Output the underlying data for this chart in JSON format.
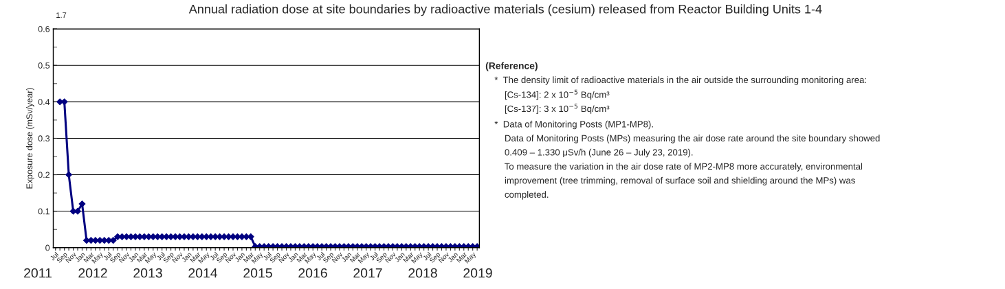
{
  "chart_data": {
    "type": "line",
    "title": "Annual radiation dose at site boundaries by radioactive materials (cesium) released from Reactor Building Units 1-4",
    "ylabel": "Exposure dose (mSv/year)",
    "categories": [
      "Jul",
      null,
      "Sep",
      null,
      "Nov",
      null,
      "Jan",
      null,
      "Mar",
      null,
      "May",
      null,
      "Jul",
      null,
      "Sep",
      null,
      "Nov",
      null,
      "Jan",
      null,
      "Mar",
      null,
      "May",
      null,
      "Jul",
      null,
      "Sep",
      null,
      "Nov",
      null,
      "Jan",
      null,
      "Mar",
      null,
      "May",
      null,
      "Jul",
      null,
      "Sep",
      null,
      "Nov",
      null,
      "Jan",
      null,
      "Mar",
      null,
      "May",
      null,
      "Jul",
      null,
      "Sep",
      null,
      "Nov",
      null,
      "Jan",
      null,
      "Mar",
      null,
      "May",
      null,
      "Jul",
      null,
      "Sep",
      null,
      "Nov",
      null,
      "Jan",
      null,
      "Mar",
      null,
      "May",
      null,
      "Jul",
      null,
      "Sep",
      null,
      "Nov",
      null,
      "Jan",
      null,
      "Mar",
      null,
      "May",
      null,
      "Jul",
      null,
      "Sep",
      null,
      "Nov",
      null,
      "Jan",
      null,
      "Mar",
      null,
      "May",
      null
    ],
    "series": [
      {
        "color": "#000080",
        "values": [
          null,
          0.4,
          0.4,
          0.2,
          0.1,
          0.1,
          0.12,
          0.02,
          0.02,
          0.02,
          0.02,
          0.02,
          0.02,
          0.02,
          0.03,
          0.03,
          0.03,
          0.03,
          0.03,
          0.03,
          0.03,
          0.03,
          0.03,
          0.03,
          0.03,
          0.03,
          0.03,
          0.03,
          0.03,
          0.03,
          0.03,
          0.03,
          0.03,
          0.03,
          0.03,
          0.03,
          0.03,
          0.03,
          0.03,
          0.03,
          0.03,
          0.03,
          0.03,
          0.03,
          0.03,
          0.003,
          0.003,
          0.003,
          0.003,
          0.003,
          0.003,
          0.003,
          0.003,
          0.003,
          0.003,
          0.003,
          0.003,
          0.003,
          0.003,
          0.003,
          0.003,
          0.003,
          0.003,
          0.003,
          0.003,
          0.003,
          0.003,
          0.003,
          0.003,
          0.003,
          0.003,
          0.003,
          0.003,
          0.003,
          0.003,
          0.003,
          0.003,
          0.003,
          0.003,
          0.003,
          0.003,
          0.003,
          0.003,
          0.003,
          0.003,
          0.003,
          0.003,
          0.003,
          0.003,
          0.003,
          0.003,
          0.003,
          0.003,
          0.003,
          0.003,
          0.003
        ]
      }
    ],
    "ylim": [
      0,
      0.6
    ],
    "yticks": [
      0,
      0.1,
      0.2,
      0.3,
      0.4,
      0.5,
      0.6
    ],
    "grid": "y",
    "marker": "diamond",
    "line_style": "solid",
    "legend": false,
    "annotations": [
      "1.7",
      "2011",
      "2012",
      "2013",
      "2014",
      "2015",
      "2016",
      "2017",
      "2018",
      "2019",
      "(Reference)",
      "*  The density limit of radioactive materials in the air outside the surrounding monitoring area:",
      "    [Cs-134]: 2 x 10$^{−5}$ Bq/cm³",
      "    [Cs-137]: 3 x 10$^{−5}$ Bq/cm³",
      "*  Data of Monitoring Posts (MP1-MP8).",
      "    Data of Monitoring Posts (MPs) measuring the air dose rate around the site boundary showed",
      "    0.409 – 1.330 μSv/h (June 26 – July 23, 2019).",
      "    To measure the variation in the air dose rate of MP2-MP8 more accurately, environmental",
      "    improvement (tree trimming, removal of surface soil and shielding around the MPs) was",
      "    completed."
    ]
  }
}
